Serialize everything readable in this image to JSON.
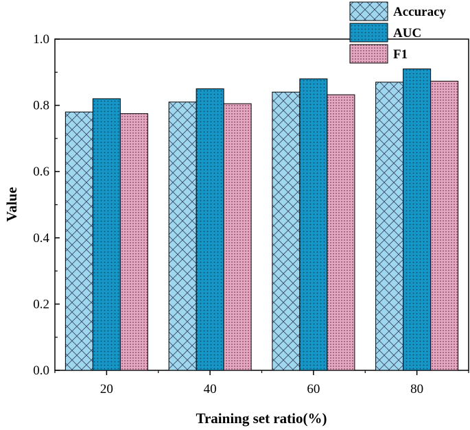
{
  "chart_data": {
    "type": "bar",
    "xlabel": "Training set ratio(%)",
    "ylabel": "Value",
    "categories": [
      "20",
      "40",
      "60",
      "80"
    ],
    "ylim": [
      0.0,
      1.0
    ],
    "yticks": [
      "0.0",
      "0.2",
      "0.4",
      "0.6",
      "0.8",
      "1.0"
    ],
    "series": [
      {
        "name": "Accuracy",
        "values": [
          0.78,
          0.81,
          0.84,
          0.87
        ],
        "color": "#9fd8ee",
        "pattern": "crosshatch"
      },
      {
        "name": "AUC",
        "values": [
          0.82,
          0.85,
          0.88,
          0.91
        ],
        "color": "#1596c6",
        "pattern": "dots"
      },
      {
        "name": "F1",
        "values": [
          0.775,
          0.805,
          0.832,
          0.873
        ],
        "color": "#e4a8c0",
        "pattern": "dense-dots"
      }
    ],
    "legend_position": "top-right",
    "grid": false
  }
}
